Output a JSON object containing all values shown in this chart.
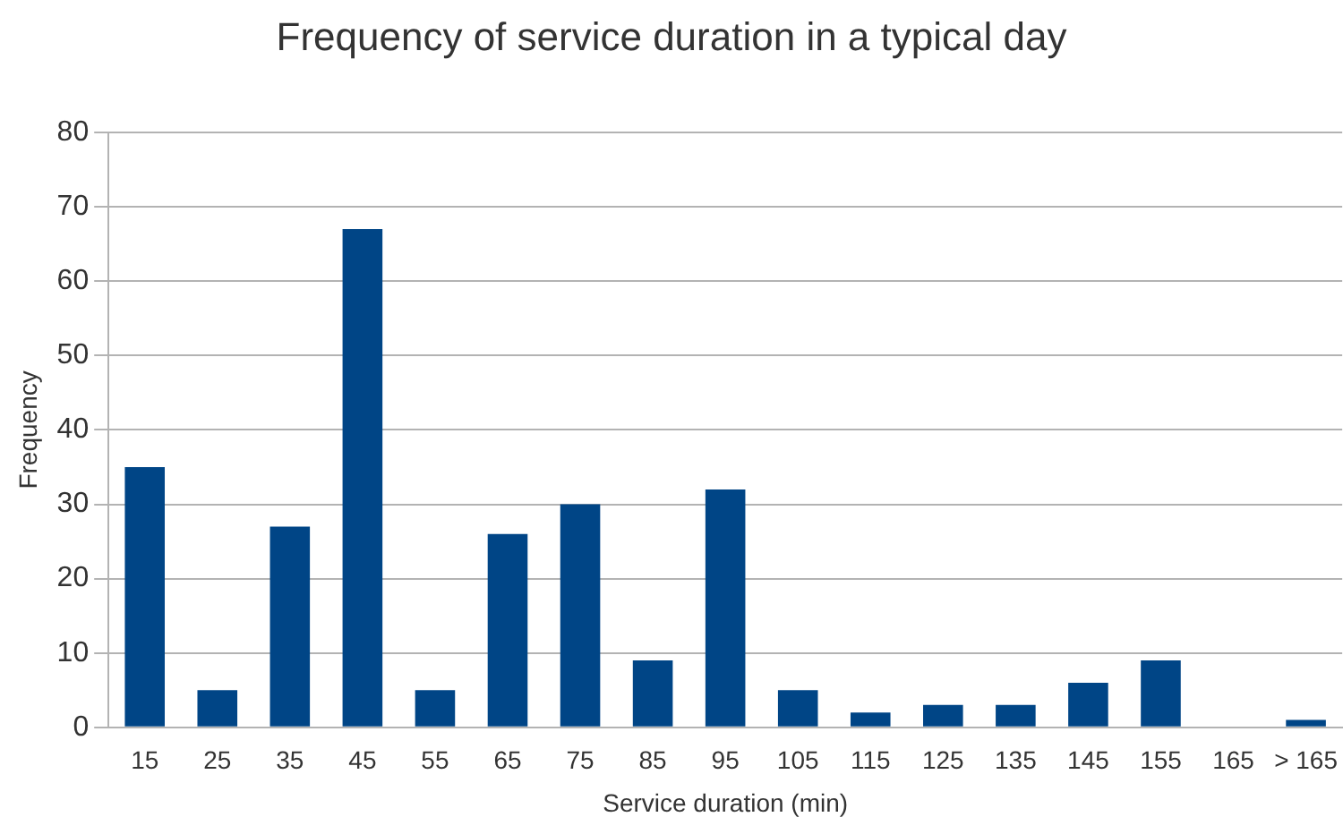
{
  "chart_data": {
    "type": "bar",
    "title": "Frequency of service duration in a typical day",
    "xlabel": "Service duration (min)",
    "ylabel": "Frequency",
    "categories": [
      "15",
      "25",
      "35",
      "45",
      "55",
      "65",
      "75",
      "85",
      "95",
      "105",
      "115",
      "125",
      "135",
      "145",
      "155",
      "165",
      "> 165"
    ],
    "values": [
      35,
      5,
      27,
      67,
      5,
      26,
      30,
      9,
      32,
      5,
      2,
      3,
      3,
      6,
      9,
      0,
      1
    ],
    "color": "#004586",
    "ylim": [
      0,
      80
    ],
    "yticks": [
      0,
      10,
      20,
      30,
      40,
      50,
      60,
      70,
      80
    ],
    "grid": "y",
    "legend": false
  }
}
